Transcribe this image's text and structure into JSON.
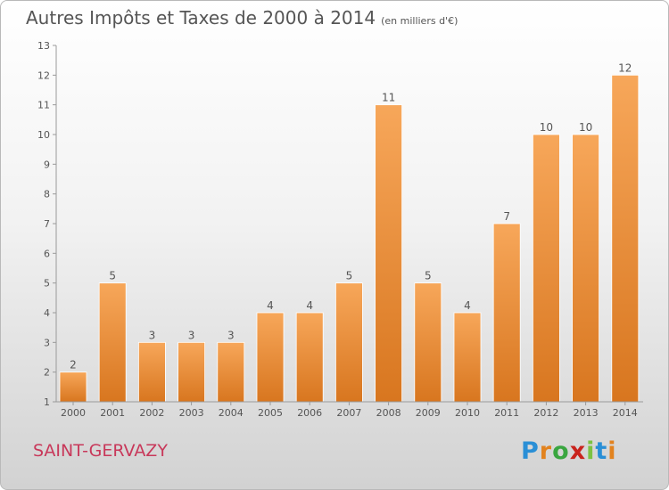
{
  "title": "Autres Impôts et Taxes de 2000 à 2014",
  "unit_label": "(en milliers d'€)",
  "commune": "SAINT-GERVAZY",
  "logo": {
    "letters": [
      "P",
      "r",
      "o",
      "x",
      "i",
      "t",
      "i"
    ],
    "colors": [
      "#2a8fd6",
      "#e2831f",
      "#3aa640",
      "#c9231d",
      "#7cc242",
      "#2a8fd6",
      "#e2831f"
    ]
  },
  "chart_data": {
    "type": "bar",
    "categories": [
      "2000",
      "2001",
      "2002",
      "2003",
      "2004",
      "2005",
      "2006",
      "2007",
      "2008",
      "2009",
      "2010",
      "2011",
      "2012",
      "2013",
      "2014"
    ],
    "values": [
      2,
      5,
      3,
      3,
      3,
      4,
      4,
      5,
      11,
      5,
      4,
      7,
      10,
      10,
      12
    ],
    "yticks": [
      1,
      2,
      3,
      4,
      5,
      6,
      7,
      8,
      9,
      10,
      11,
      12,
      13
    ],
    "ylim": [
      1,
      13
    ],
    "grid": false,
    "bar_color": "#f0953a"
  }
}
